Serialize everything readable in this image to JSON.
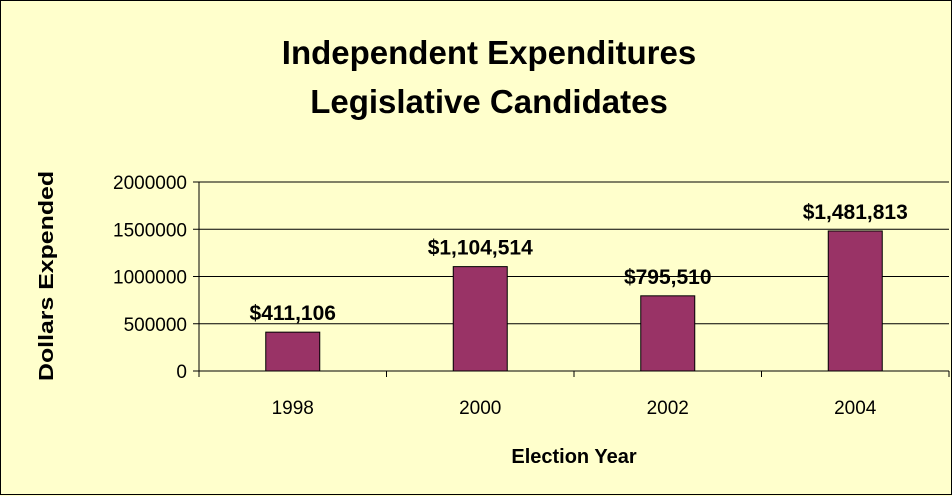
{
  "chart_data": {
    "type": "bar",
    "title_lines": [
      "Independent Expenditures",
      "Legislative Candidates"
    ],
    "xlabel": "Election Year",
    "ylabel": "Dollars Expended",
    "categories": [
      "1998",
      "2000",
      "2002",
      "2004"
    ],
    "values": [
      411106,
      1104514,
      795510,
      1481813
    ],
    "data_labels": [
      "$411,106",
      "$1,104,514",
      "$795,510",
      "$1,481,813"
    ],
    "ylim": [
      0,
      2000000
    ],
    "yticks": [
      "0",
      "500000",
      "1000000",
      "1500000",
      "2000000"
    ],
    "grid": true,
    "legend": "none"
  },
  "colors": {
    "background": "#ffffcc",
    "bar_fill": "#993366",
    "bar_stroke": "#000000",
    "gridline": "#000000"
  }
}
